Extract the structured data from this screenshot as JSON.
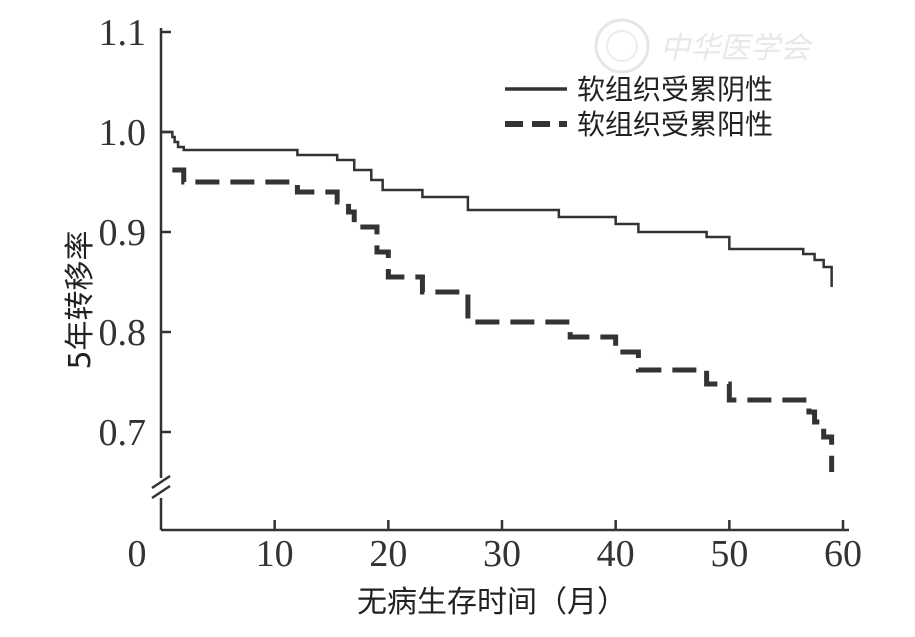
{
  "chart_data": {
    "type": "line",
    "xlabel": "无病生存时间（月）",
    "ylabel": "5年转移率",
    "xlim": [
      0,
      60
    ],
    "ylim": [
      0.64,
      1.1
    ],
    "x_ticks": [
      0,
      10,
      20,
      30,
      40,
      50,
      60
    ],
    "x_tick_labels": [
      "0",
      "10",
      "20",
      "30",
      "40",
      "50",
      "60"
    ],
    "y_ticks": [
      0.7,
      0.8,
      0.9,
      1.0,
      1.1
    ],
    "y_tick_labels": [
      "0.7",
      "0.8",
      "0.9",
      "1.0",
      "1.1"
    ],
    "y_axis_break": true,
    "grid": false,
    "legend_position": "top-right",
    "series": [
      {
        "name": "软组织受累阴性",
        "style": "solid",
        "color": "#333333",
        "step": true,
        "points": [
          [
            0,
            1.0
          ],
          [
            1,
            0.995
          ],
          [
            1.2,
            0.99
          ],
          [
            1.5,
            0.985
          ],
          [
            2,
            0.982
          ],
          [
            12,
            0.977
          ],
          [
            15.5,
            0.972
          ],
          [
            17,
            0.962
          ],
          [
            18.5,
            0.952
          ],
          [
            19.5,
            0.942
          ],
          [
            23,
            0.935
          ],
          [
            27,
            0.922
          ],
          [
            35,
            0.915
          ],
          [
            40,
            0.908
          ],
          [
            42,
            0.9
          ],
          [
            48,
            0.895
          ],
          [
            50,
            0.883
          ],
          [
            56.5,
            0.878
          ],
          [
            57.5,
            0.872
          ],
          [
            58.3,
            0.865
          ],
          [
            59,
            0.845
          ]
        ]
      },
      {
        "name": "软组织受累阳性",
        "style": "dashed",
        "color": "#333333",
        "step": true,
        "points": [
          [
            1,
            0.962
          ],
          [
            2,
            0.95
          ],
          [
            12,
            0.94
          ],
          [
            15.5,
            0.93
          ],
          [
            16.5,
            0.92
          ],
          [
            17,
            0.905
          ],
          [
            19,
            0.88
          ],
          [
            20,
            0.855
          ],
          [
            23,
            0.84
          ],
          [
            27,
            0.81
          ],
          [
            36,
            0.795
          ],
          [
            40,
            0.78
          ],
          [
            42,
            0.762
          ],
          [
            48,
            0.748
          ],
          [
            50,
            0.732
          ],
          [
            57,
            0.72
          ],
          [
            57.5,
            0.71
          ],
          [
            58.3,
            0.695
          ],
          [
            59,
            0.66
          ]
        ]
      }
    ]
  },
  "watermark": {
    "text": "中华医学会",
    "color": "#e8e8e8"
  }
}
